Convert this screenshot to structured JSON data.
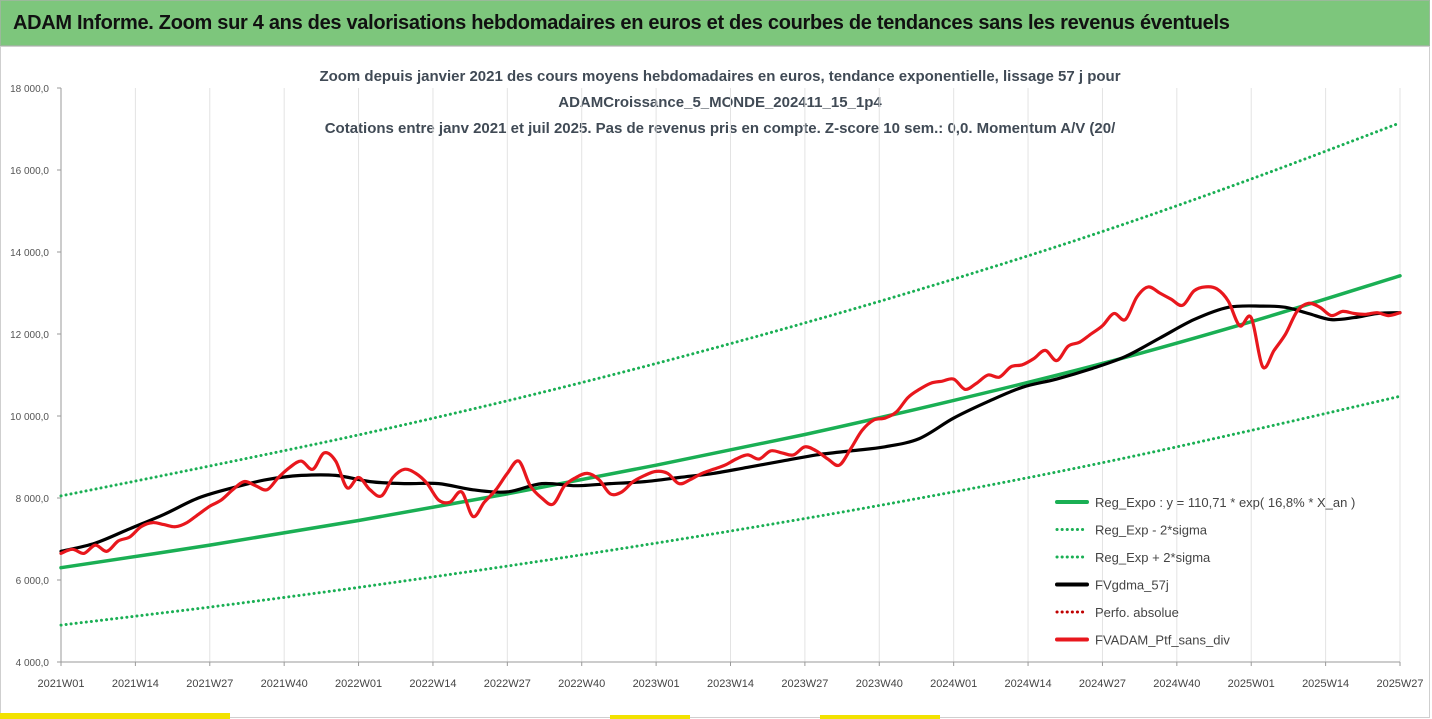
{
  "header": {
    "title": "ADAM Informe. Zoom sur 4 ans des valorisations hebdomadaires en euros et des courbes de tendances sans les revenus éventuels"
  },
  "colors": {
    "header_bg": "#7dc67c",
    "trend_green": "#1aaf54",
    "smooth_black": "#000000",
    "price_red": "#e8171d",
    "perf_red": "#c00000"
  },
  "chart_data": {
    "type": "line",
    "title_lines": [
      "Zoom depuis janvier 2021 des cours moyens hebdomadaires  en euros, tendance exponentielle, lissage 57 j pour",
      "ADAMCroissance_5_MONDE_202411_15_1p4",
      "Cotations entre janv 2021 et juil 2025. Pas de revenus pris en compte. Z-score 10 sem.: 0,0. Momentum A/V (20/"
    ],
    "ylim": [
      4000,
      18000
    ],
    "yticks": [
      "4 000,0",
      "6 000,0",
      "8 000,0",
      "10 000,0",
      "12 000,0",
      "14 000,0",
      "16 000,0",
      "18 000,0"
    ],
    "ytick_values": [
      4000,
      6000,
      8000,
      10000,
      12000,
      14000,
      16000,
      18000
    ],
    "xlim": [
      0,
      234
    ],
    "xticks": [
      "2021W01",
      "2021W14",
      "2021W27",
      "2021W40",
      "2022W01",
      "2022W14",
      "2022W27",
      "2022W40",
      "2023W01",
      "2023W14",
      "2023W27",
      "2023W40",
      "2024W01",
      "2024W14",
      "2024W27",
      "2024W40",
      "2025W01",
      "2025W14",
      "2025W27"
    ],
    "xtick_values": [
      0,
      13,
      26,
      39,
      52,
      65,
      78,
      91,
      104,
      117,
      130,
      143,
      156,
      169,
      182,
      195,
      208,
      221,
      234
    ],
    "grid": "vertical",
    "legend_position": "bottom-right",
    "series": [
      {
        "name": "Reg_Expo : y = 110,71 * exp( 16,8% *  X_an )",
        "style": "solid",
        "color": "#1aaf54",
        "x": [
          0,
          26,
          52,
          78,
          104,
          130,
          156,
          182,
          208,
          234
        ],
        "y": [
          6300,
          6850,
          7450,
          8100,
          8800,
          9550,
          10380,
          11280,
          12300,
          13420
        ]
      },
      {
        "name": "Reg_Exp - 2*sigma",
        "style": "dotted",
        "color": "#1aaf54",
        "x": [
          0,
          26,
          52,
          78,
          104,
          130,
          156,
          182,
          208,
          234
        ],
        "y": [
          4900,
          5340,
          5820,
          6340,
          6900,
          7500,
          8150,
          8860,
          9650,
          10480
        ]
      },
      {
        "name": "Reg_Exp + 2*sigma",
        "style": "dotted",
        "color": "#1aaf54",
        "x": [
          0,
          26,
          52,
          78,
          104,
          130,
          156,
          182,
          208,
          234
        ],
        "y": [
          8050,
          8780,
          9540,
          10370,
          11280,
          12270,
          13340,
          14500,
          15780,
          17150
        ]
      },
      {
        "name": "FVgdma_57j",
        "style": "solid",
        "color": "#000000",
        "x": [
          0,
          6,
          12,
          18,
          24,
          30,
          36,
          42,
          48,
          54,
          60,
          66,
          72,
          78,
          84,
          90,
          96,
          102,
          108,
          114,
          120,
          126,
          132,
          138,
          144,
          150,
          156,
          162,
          168,
          174,
          180,
          186,
          192,
          198,
          204,
          210,
          214,
          218,
          222,
          226,
          230,
          234
        ],
        "y": [
          6700,
          6900,
          7250,
          7600,
          8000,
          8250,
          8450,
          8550,
          8550,
          8400,
          8350,
          8350,
          8200,
          8150,
          8350,
          8300,
          8350,
          8400,
          8500,
          8600,
          8750,
          8900,
          9050,
          9150,
          9250,
          9450,
          9950,
          10350,
          10700,
          10900,
          11150,
          11450,
          11900,
          12350,
          12650,
          12680,
          12650,
          12500,
          12350,
          12400,
          12500,
          12520
        ]
      },
      {
        "name": "Perfo. absolue",
        "style": "dotted",
        "color": "#c00000",
        "x": [],
        "y": []
      },
      {
        "name": "FVADAM_Ptf_sans_div",
        "style": "solid",
        "color": "#e8171d",
        "x": [
          0,
          2,
          4,
          6,
          8,
          10,
          12,
          14,
          16,
          18,
          20,
          22,
          24,
          26,
          28,
          30,
          32,
          34,
          36,
          38,
          40,
          42,
          44,
          46,
          48,
          50,
          52,
          54,
          56,
          58,
          60,
          62,
          64,
          66,
          68,
          70,
          72,
          74,
          76,
          78,
          80,
          82,
          84,
          86,
          88,
          90,
          92,
          94,
          96,
          98,
          100,
          102,
          104,
          106,
          108,
          110,
          112,
          114,
          116,
          118,
          120,
          122,
          124,
          126,
          128,
          130,
          132,
          134,
          136,
          138,
          140,
          142,
          144,
          146,
          148,
          150,
          152,
          154,
          156,
          158,
          160,
          162,
          164,
          166,
          168,
          170,
          172,
          174,
          176,
          178,
          180,
          182,
          184,
          186,
          188,
          190,
          192,
          194,
          196,
          198,
          200,
          202,
          204,
          206,
          208,
          210,
          212,
          214,
          216,
          218,
          220,
          222,
          224,
          226,
          228,
          230,
          232,
          234
        ],
        "y": [
          6650,
          6750,
          6650,
          6850,
          6700,
          6950,
          7050,
          7300,
          7400,
          7350,
          7300,
          7400,
          7600,
          7800,
          7950,
          8200,
          8400,
          8300,
          8200,
          8500,
          8750,
          8900,
          8700,
          9100,
          8900,
          8250,
          8500,
          8200,
          8050,
          8500,
          8700,
          8600,
          8350,
          7950,
          7900,
          8150,
          7550,
          7900,
          8200,
          8600,
          8900,
          8300,
          8000,
          7850,
          8300,
          8500,
          8600,
          8450,
          8100,
          8150,
          8400,
          8550,
          8650,
          8600,
          8350,
          8450,
          8600,
          8700,
          8800,
          8950,
          9050,
          8950,
          9150,
          9100,
          9050,
          9250,
          9150,
          8950,
          8800,
          9200,
          9650,
          9900,
          9950,
          10100,
          10450,
          10650,
          10800,
          10850,
          10900,
          10650,
          10800,
          11000,
          10950,
          11200,
          11250,
          11400,
          11600,
          11350,
          11700,
          11800,
          12000,
          12200,
          12500,
          12350,
          12900,
          13150,
          13000,
          12850,
          12700,
          13050,
          13150,
          13100,
          12800,
          12200,
          12400,
          11200,
          11600,
          12000,
          12550,
          12750,
          12650,
          12450,
          12550,
          12500,
          12480,
          12520,
          12450,
          12520
        ]
      }
    ]
  }
}
